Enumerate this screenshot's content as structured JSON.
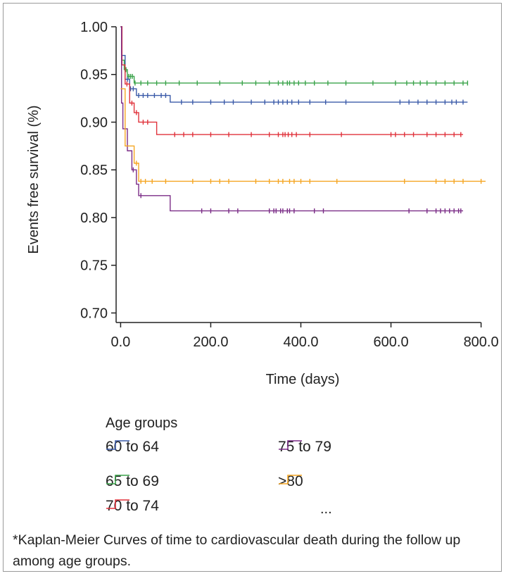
{
  "chart_data": {
    "type": "line",
    "subtype": "kaplan-meier-step",
    "ylabel": "Events free survival (%)",
    "xlabel": "Time (days)",
    "xlim": [
      -10,
      810
    ],
    "ylim": [
      0.69,
      1.0
    ],
    "x_ticks": [
      0,
      200,
      400,
      600,
      800
    ],
    "x_tick_labels": [
      "0.0",
      "200.0",
      "400.0",
      "600.0",
      "800.0"
    ],
    "y_ticks": [
      1.0,
      0.95,
      0.9,
      0.85,
      0.8,
      0.75,
      0.7
    ],
    "y_tick_labels": [
      "1.00",
      "0.95",
      "0.90",
      "0.85",
      "0.80",
      "0.75",
      "0.70"
    ],
    "legend_title": "Age groups",
    "series": [
      {
        "name": "60 to 64",
        "color": "#3b5ba9",
        "steps": [
          [
            0,
            1.0
          ],
          [
            2,
            0.97
          ],
          [
            10,
            0.945
          ],
          [
            20,
            0.935
          ],
          [
            35,
            0.928
          ],
          [
            110,
            0.921
          ],
          [
            770,
            0.921
          ]
        ],
        "censor": [
          15,
          22,
          28,
          40,
          50,
          60,
          75,
          90,
          100,
          135,
          160,
          200,
          230,
          250,
          290,
          320,
          340,
          350,
          360,
          370,
          380,
          395,
          420,
          455,
          500,
          620,
          640,
          660,
          680,
          700,
          720,
          735,
          745,
          760
        ]
      },
      {
        "name": "65 to 69",
        "color": "#3aa34a",
        "steps": [
          [
            0,
            1.0
          ],
          [
            3,
            0.965
          ],
          [
            8,
            0.955
          ],
          [
            15,
            0.948
          ],
          [
            30,
            0.941
          ],
          [
            770,
            0.941
          ]
        ],
        "censor": [
          12,
          18,
          22,
          26,
          32,
          45,
          60,
          80,
          100,
          130,
          170,
          220,
          270,
          300,
          330,
          350,
          360,
          370,
          375,
          385,
          395,
          410,
          430,
          460,
          500,
          560,
          610,
          635,
          650,
          665,
          680,
          700,
          720,
          740,
          760,
          770
        ]
      },
      {
        "name": "70 to 74",
        "color": "#e0323b",
        "steps": [
          [
            0,
            1.0
          ],
          [
            3,
            0.96
          ],
          [
            10,
            0.94
          ],
          [
            20,
            0.92
          ],
          [
            30,
            0.91
          ],
          [
            40,
            0.9
          ],
          [
            80,
            0.887
          ],
          [
            760,
            0.887
          ]
        ],
        "censor": [
          14,
          25,
          35,
          50,
          60,
          120,
          140,
          160,
          200,
          240,
          290,
          330,
          350,
          360,
          365,
          372,
          380,
          390,
          420,
          490,
          600,
          610,
          630,
          650,
          680,
          700,
          720,
          740,
          755
        ]
      },
      {
        "name": "75 to 79",
        "color": "#7b2d87",
        "steps": [
          [
            0,
            1.0
          ],
          [
            2,
            0.92
          ],
          [
            5,
            0.893
          ],
          [
            15,
            0.87
          ],
          [
            25,
            0.85
          ],
          [
            35,
            0.835
          ],
          [
            40,
            0.823
          ],
          [
            110,
            0.807
          ],
          [
            760,
            0.807
          ]
        ],
        "censor": [
          28,
          45,
          180,
          200,
          240,
          260,
          330,
          340,
          345,
          355,
          360,
          370,
          375,
          385,
          430,
          450,
          640,
          680,
          700,
          710,
          720,
          730,
          740,
          750,
          755
        ]
      },
      {
        "name": ">80",
        "color": "#f5a623",
        "steps": [
          [
            0,
            0.935
          ],
          [
            10,
            0.875
          ],
          [
            30,
            0.857
          ],
          [
            40,
            0.838
          ],
          [
            810,
            0.838
          ]
        ],
        "censor": [
          35,
          45,
          55,
          70,
          100,
          160,
          200,
          220,
          240,
          300,
          330,
          350,
          360,
          375,
          385,
          400,
          420,
          480,
          630,
          700,
          720,
          740,
          760,
          800
        ]
      }
    ],
    "legend_extra": "...",
    "caption": "*Kaplan-Meier Curves of time to cardiovascular death during the follow up among age groups."
  }
}
